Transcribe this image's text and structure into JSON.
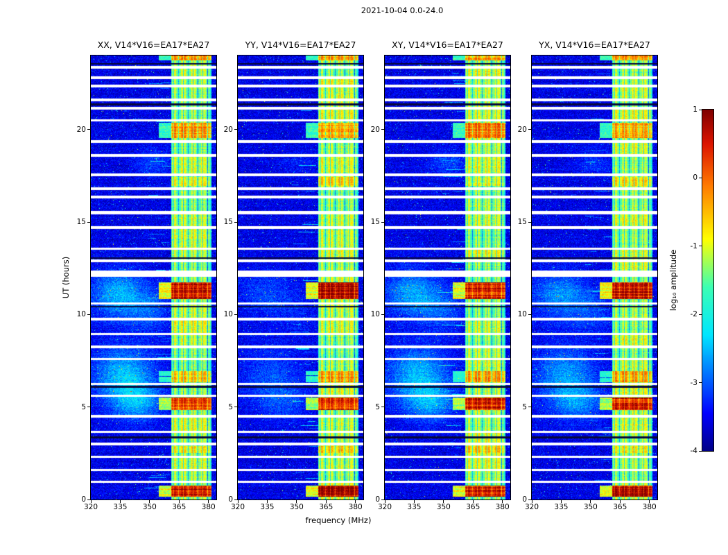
{
  "chart_data": {
    "type": "heatmap",
    "title": "2021-10-04 0.0-24.0",
    "panels": [
      {
        "label": "XX",
        "title": "XX, V14*V16=EA17*EA27"
      },
      {
        "label": "YY",
        "title": "YY, V14*V16=EA17*EA27"
      },
      {
        "label": "XY",
        "title": "XY, V14*V16=EA17*EA27"
      },
      {
        "label": "YX",
        "title": "YX, V14*V16=EA17*EA27"
      }
    ],
    "x_axis": {
      "label": "frequency (MHz)",
      "range": [
        320,
        384
      ],
      "ticks": [
        320,
        335,
        350,
        365,
        380
      ]
    },
    "y_axis": {
      "label": "UT (hours)",
      "range": [
        0,
        24
      ],
      "ticks": [
        0,
        5,
        10,
        15,
        20
      ]
    },
    "colorbar": {
      "label": "log₁₀ amplitude",
      "range": [
        -4,
        1
      ],
      "ticks": [
        1,
        0,
        -1,
        -2,
        -3,
        -4
      ]
    },
    "features": {
      "background_level": -3.55,
      "noise_amplitude": 0.5,
      "speckle_probability": 0.01,
      "rfi_band": {
        "f_start": 361,
        "f_end": 381.5,
        "base_level": -1.2,
        "comb_start": 362.2,
        "comb_spacing": 2.48,
        "comb_width": 0.17,
        "comb_depth": 1.6
      },
      "bursts": [
        {
          "t_start": 23.72,
          "t_end": 24.0,
          "amp": 1.1
        },
        {
          "t_start": 19.55,
          "t_end": 20.35,
          "amp": 1.0
        },
        {
          "t_start": 16.95,
          "t_end": 17.45,
          "amp": 0.45
        },
        {
          "t_start": 10.85,
          "t_end": 11.75,
          "amp": 2.0
        },
        {
          "t_start": 6.35,
          "t_end": 6.95,
          "amp": 0.85
        },
        {
          "t_start": 4.85,
          "t_end": 5.5,
          "amp": 1.6
        },
        {
          "t_start": 2.5,
          "t_end": 2.9,
          "amp": 0.4
        },
        {
          "t_start": 0.15,
          "t_end": 0.75,
          "amp": 1.9
        }
      ],
      "time_gaps": [
        {
          "t": 23.35,
          "hw": 0.07
        },
        {
          "t": 22.8,
          "hw": 0.06
        },
        {
          "t": 22.35,
          "hw": 0.06
        },
        {
          "t": 21.6,
          "hw": 0.07
        },
        {
          "t": 21.15,
          "hw": 0.06
        },
        {
          "t": 20.5,
          "hw": 0.06
        },
        {
          "t": 19.35,
          "hw": 0.07
        },
        {
          "t": 18.6,
          "hw": 0.09
        },
        {
          "t": 17.55,
          "hw": 0.06
        },
        {
          "t": 16.8,
          "hw": 0.06
        },
        {
          "t": 16.35,
          "hw": 0.06
        },
        {
          "t": 15.5,
          "hw": 0.09
        },
        {
          "t": 14.7,
          "hw": 0.06
        },
        {
          "t": 13.55,
          "hw": 0.06
        },
        {
          "t": 12.9,
          "hw": 0.06
        },
        {
          "t": 12.2,
          "hw": 0.18
        },
        {
          "t": 10.6,
          "hw": 0.06
        },
        {
          "t": 9.75,
          "hw": 0.06
        },
        {
          "t": 8.95,
          "hw": 0.06
        },
        {
          "t": 8.25,
          "hw": 0.06
        },
        {
          "t": 7.6,
          "hw": 0.06
        },
        {
          "t": 6.25,
          "hw": 0.06
        },
        {
          "t": 5.6,
          "hw": 0.05
        },
        {
          "t": 4.5,
          "hw": 0.06
        },
        {
          "t": 3.65,
          "hw": 0.06
        },
        {
          "t": 3.0,
          "hw": 0.06
        },
        {
          "t": 2.3,
          "hw": 0.06
        },
        {
          "t": 1.6,
          "hw": 0.06
        },
        {
          "t": 0.95,
          "hw": 0.06
        }
      ],
      "dark_lines": [
        23.55,
        21.35,
        13.05,
        10.42,
        6.1,
        3.35
      ],
      "clouds": [
        {
          "t": 6.7,
          "f": 337,
          "st": 1.1,
          "sf": 11,
          "amp": 1.1
        },
        {
          "t": 5.2,
          "f": 344,
          "st": 0.7,
          "sf": 9,
          "amp": 0.8
        },
        {
          "t": 11.1,
          "f": 334,
          "st": 0.9,
          "sf": 10,
          "amp": 1.0
        },
        {
          "t": 10.2,
          "f": 350,
          "st": 0.8,
          "sf": 8,
          "amp": 0.5
        },
        {
          "t": 18.2,
          "f": 352,
          "st": 0.5,
          "sf": 7,
          "amp": 0.45
        }
      ],
      "cloud_scale_per_panel": [
        1.0,
        0.45,
        0.95,
        0.8
      ]
    }
  }
}
